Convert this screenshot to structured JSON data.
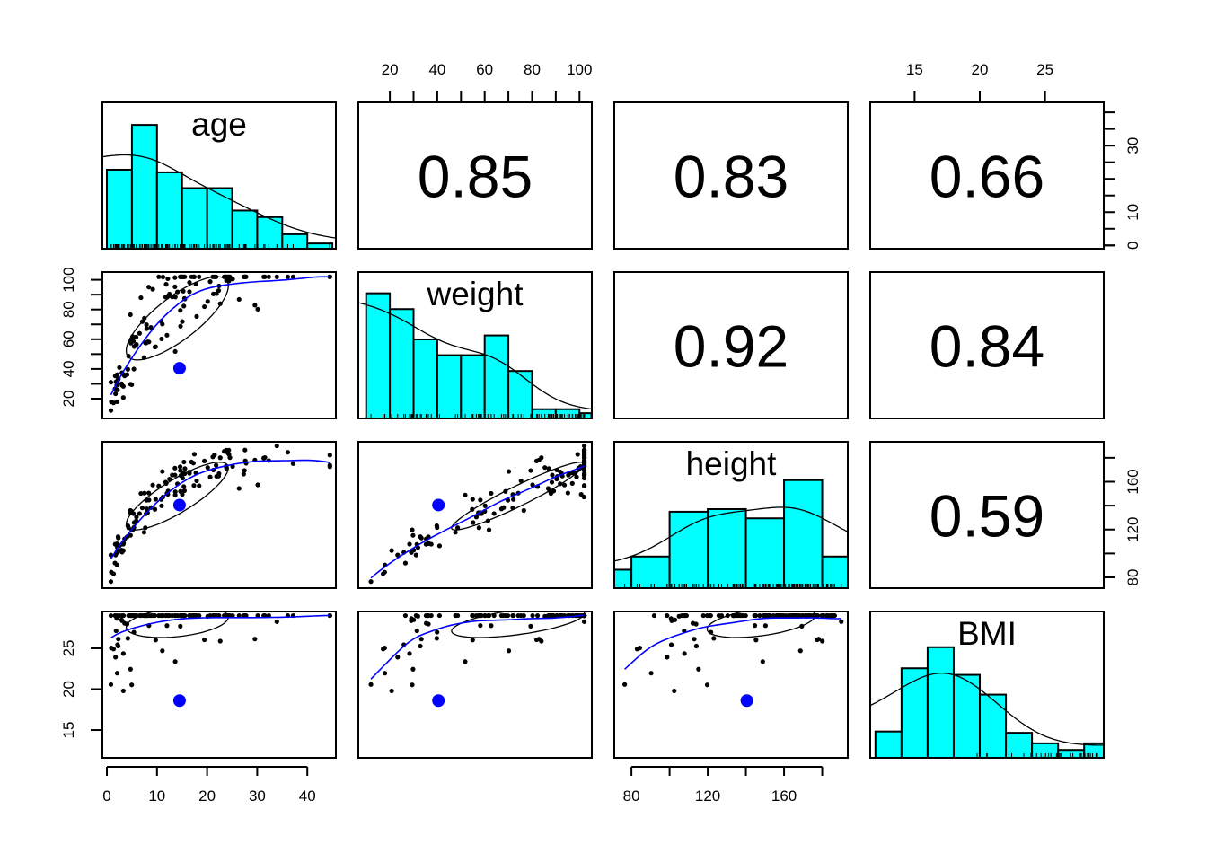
{
  "chart_data": {
    "type": "scatter",
    "title": "",
    "description": "Scatterplot matrix (pairs.panels) with histograms + density on diagonal, scatter with correlation ellipse and loess smoother in lower panels, Pearson correlations in upper panels",
    "variables": [
      "age",
      "weight",
      "height",
      "BMI"
    ],
    "axes": {
      "age": {
        "range": [
          -0.9,
          45.7
        ],
        "ticks": [
          0,
          10,
          20,
          30,
          40
        ],
        "tick_labels": [
          "0",
          "10",
          "20",
          "30",
          "40"
        ]
      },
      "weight": {
        "range": [
          6.7,
          105.2
        ],
        "ticks": [
          20,
          30,
          40,
          50,
          60,
          70,
          80,
          90,
          100
        ],
        "tick_labels": [
          "20",
          "",
          "40",
          "",
          "60",
          "",
          "80",
          "",
          "100"
        ]
      },
      "height": {
        "range": [
          71,
          193.4
        ],
        "ticks": [
          80,
          100,
          120,
          140,
          160,
          180
        ],
        "tick_labels": [
          "80",
          "",
          "120",
          "",
          "160",
          ""
        ]
      },
      "BMI": {
        "range": [
          11.6,
          29.5
        ],
        "ticks": [
          15,
          20,
          25
        ],
        "tick_labels": [
          "15",
          "20",
          "25"
        ]
      }
    },
    "axis_placement": {
      "bottom": [
        "age",
        null,
        "height",
        null
      ],
      "top": [
        null,
        "weight",
        null,
        "BMI"
      ],
      "left": [
        null,
        "weight",
        null,
        "BMI"
      ],
      "right": [
        "histogram_count",
        null,
        "height",
        null
      ]
    },
    "histogram_count_axis": {
      "range": [
        -1,
        43
      ],
      "ticks": [
        0,
        5,
        10,
        15,
        20,
        25,
        30,
        35,
        40
      ],
      "tick_labels": [
        "0",
        "",
        "10",
        "",
        "",
        "",
        "30",
        "",
        ""
      ]
    },
    "correlations": [
      {
        "row": "age",
        "col": "weight",
        "r": "0.85"
      },
      {
        "row": "age",
        "col": "height",
        "r": "0.83"
      },
      {
        "row": "age",
        "col": "BMI",
        "r": "0.66"
      },
      {
        "row": "weight",
        "col": "height",
        "r": "0.92"
      },
      {
        "row": "weight",
        "col": "BMI",
        "r": "0.84"
      },
      {
        "row": "height",
        "col": "BMI",
        "r": "0.59"
      }
    ],
    "histograms": {
      "age": {
        "breaks": [
          0,
          5,
          10,
          15,
          20,
          25,
          30,
          35,
          40,
          45
        ],
        "density_peak": 8,
        "heights": [
          0.6,
          0.94,
          0.58,
          0.46,
          0.46,
          0.29,
          0.24,
          0.11,
          0.04
        ]
      },
      "weight": {
        "breaks": [
          10,
          20,
          30,
          40,
          50,
          60,
          70,
          80,
          90,
          100,
          105
        ],
        "heights": [
          0.95,
          0.83,
          0.6,
          0.48,
          0.48,
          0.63,
          0.36,
          0.07,
          0.07,
          0.04
        ]
      },
      "height": {
        "breaks": [
          70,
          80,
          100,
          120,
          140,
          160,
          180,
          200
        ],
        "heights": [
          0.14,
          0.24,
          0.58,
          0.6,
          0.53,
          0.82,
          0.24
        ]
      },
      "BMI": {
        "breaks": [
          12,
          14,
          16,
          18,
          20,
          22,
          24,
          26,
          28,
          30
        ],
        "heights": [
          0.2,
          0.68,
          0.84,
          0.63,
          0.48,
          0.19,
          0.11,
          0.06,
          0.11
        ]
      }
    },
    "means": {
      "age": 14.5,
      "weight": 40.5,
      "height": 140.5,
      "BMI": 18.6
    },
    "point_color": "#000000",
    "smooth_color": "#0000FF",
    "hist_fill": "#00FFFF"
  }
}
